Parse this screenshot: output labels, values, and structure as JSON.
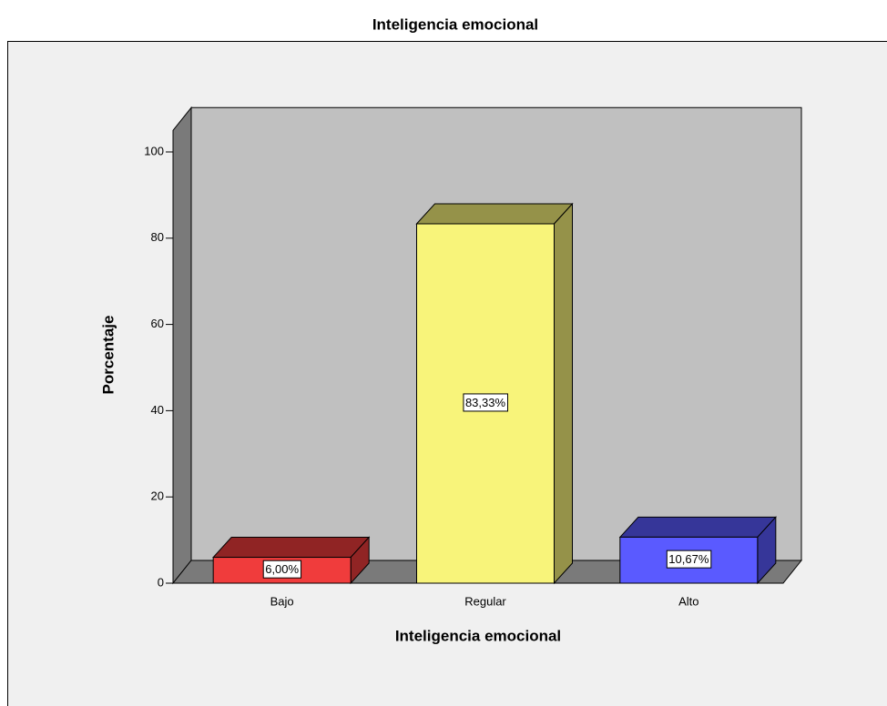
{
  "chart_data": {
    "type": "bar3d",
    "title": "Inteligencia emocional",
    "x_label": "Inteligencia emocional",
    "y_label": "Porcentaje",
    "categories": [
      "Bajo",
      "Regular",
      "Alto"
    ],
    "values": [
      6.0,
      83.33,
      10.67
    ],
    "value_labels": [
      "6,00%",
      "83,33%",
      "10,67%"
    ],
    "colors": [
      "#f03c3c",
      "#f8f47a",
      "#5a5aff"
    ],
    "ylim": [
      0,
      105
    ],
    "yticks": [
      0,
      20,
      40,
      60,
      80,
      100
    ]
  }
}
